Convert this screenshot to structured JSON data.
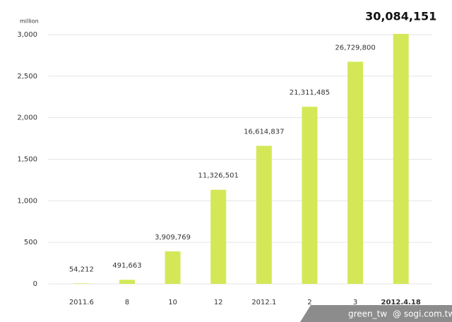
{
  "chart_data": {
    "type": "bar",
    "y_label": "million",
    "categories": [
      "2011.6",
      "8",
      "10",
      "12",
      "2012.1",
      "2",
      "3",
      "2012.4.18"
    ],
    "values": [
      5.4212,
      49.1663,
      390.9769,
      1132.6501,
      1661.4837,
      2131.1485,
      2672.98,
      3008.4151
    ],
    "value_labels": [
      "54,212",
      "491,663",
      "3,909,769",
      "11,326,501",
      "16,614,837",
      "21,311,485",
      "26,729,800",
      "30,084,151"
    ],
    "color": "#d4e857",
    "ylim": [
      0,
      3000
    ],
    "yticks": [
      0,
      500,
      {
        "value": 1000,
        "label": "1,000"
      },
      {
        "value": 1500,
        "label": "1,500"
      },
      {
        "value": 2000,
        "label": "2,000"
      },
      {
        "value": 2500,
        "label": "2,500"
      },
      {
        "value": 3000,
        "label": "3,000"
      }
    ],
    "grid": true
  },
  "watermark": {
    "user": "green_tw",
    "site": "@ sogi.com.tw"
  }
}
